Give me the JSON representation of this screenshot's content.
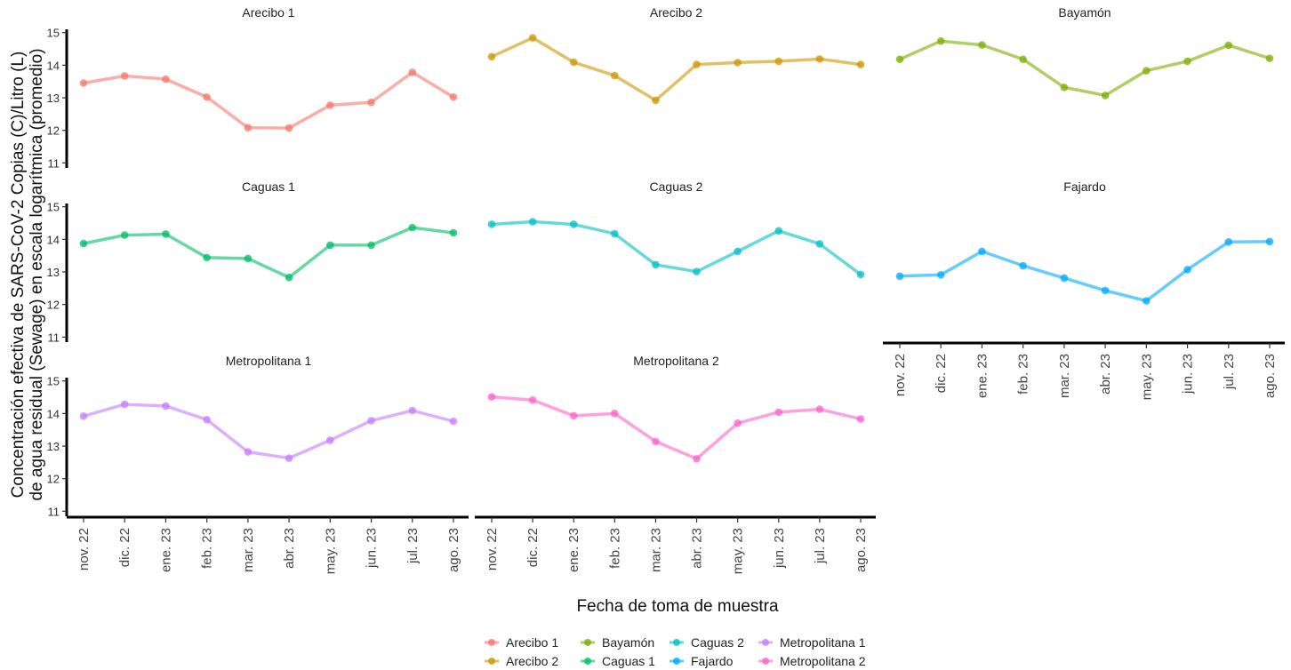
{
  "chart_data": {
    "type": "line",
    "facets": true,
    "x_categories": [
      "nov. 22",
      "dic. 22",
      "ene. 23",
      "feb. 23",
      "mar. 23",
      "abr. 23",
      "may. 23",
      "jun. 23",
      "jul. 23",
      "ago. 23"
    ],
    "xlabel": "Fecha de toma de muestra",
    "ylabel_line1": "Concentración efectiva de SARS-CoV-2 Copias (C)/Litro (L)",
    "ylabel_line2": "de agua residual (Sewage) en escala logarítmica (promedio)",
    "ylim": [
      10.9,
      15.1
    ],
    "y_ticks": [
      11,
      12,
      13,
      14,
      15
    ],
    "grid": false,
    "legend_position": "bottom",
    "series": [
      {
        "name": "Arecibo 1",
        "color": "#F8766D",
        "values": [
          13.45,
          13.67,
          13.57,
          13.02,
          12.08,
          12.07,
          12.77,
          12.86,
          13.78,
          13.02
        ]
      },
      {
        "name": "Arecibo 2",
        "color": "#CD9600",
        "values": [
          14.26,
          14.84,
          14.09,
          13.68,
          12.92,
          14.02,
          14.08,
          14.12,
          14.19,
          14.02
        ]
      },
      {
        "name": "Bayamón",
        "color": "#7CAE00",
        "values": [
          14.18,
          14.74,
          14.62,
          14.18,
          13.32,
          13.07,
          13.83,
          14.12,
          14.61,
          14.21
        ]
      },
      {
        "name": "Caguas 1",
        "color": "#00BE67",
        "values": [
          13.87,
          14.13,
          14.16,
          13.44,
          13.41,
          12.83,
          13.82,
          13.82,
          14.36,
          14.2
        ]
      },
      {
        "name": "Caguas 2",
        "color": "#00BFC4",
        "values": [
          14.46,
          14.54,
          14.46,
          14.17,
          13.22,
          13.01,
          13.63,
          14.26,
          13.86,
          12.92
        ]
      },
      {
        "name": "Fajardo",
        "color": "#00A9FF",
        "values": [
          12.87,
          12.91,
          13.63,
          13.19,
          12.81,
          12.43,
          12.11,
          13.07,
          13.92,
          13.93
        ]
      },
      {
        "name": "Metropolitana 1",
        "color": "#C77CFF",
        "values": [
          13.92,
          14.28,
          14.23,
          13.81,
          12.82,
          12.63,
          13.18,
          13.78,
          14.09,
          13.76
        ]
      },
      {
        "name": "Metropolitana 2",
        "color": "#FF61CC",
        "values": [
          14.51,
          14.41,
          13.93,
          14.0,
          13.14,
          12.61,
          13.7,
          14.04,
          14.13,
          13.83
        ]
      }
    ]
  }
}
